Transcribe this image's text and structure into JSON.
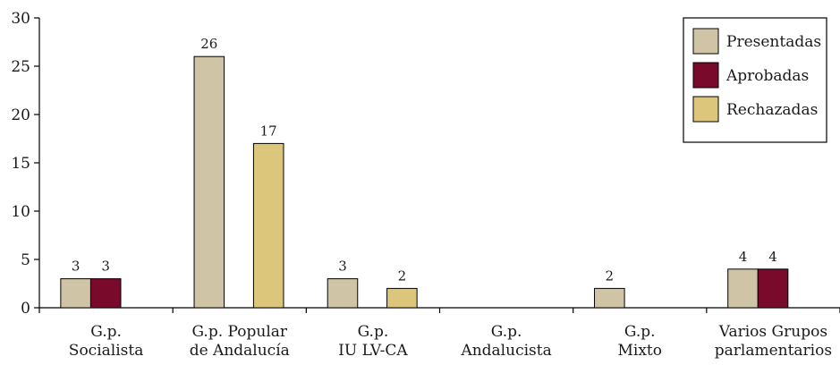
{
  "chart_data": {
    "type": "bar",
    "categories": [
      [
        "G.p.",
        "Socialista"
      ],
      [
        "G.p. Popular",
        "de Andalucía"
      ],
      [
        "G.p.",
        "IU LV-CA"
      ],
      [
        "G.p.",
        "Andalucista"
      ],
      [
        "G.p.",
        "Mixto"
      ],
      [
        "Varios Grupos",
        "parlamentarios"
      ]
    ],
    "series": [
      {
        "name": "Presentadas",
        "color": "#cfc5a6",
        "values": [
          3,
          26,
          3,
          null,
          2,
          4
        ]
      },
      {
        "name": "Aprobadas",
        "color": "#7a0a2c",
        "values": [
          3,
          null,
          null,
          null,
          null,
          4
        ]
      },
      {
        "name": "Rechazadas",
        "color": "#dcc67c",
        "values": [
          null,
          17,
          2,
          null,
          null,
          null
        ]
      }
    ],
    "yticks": [
      "0",
      "5",
      "10",
      "15",
      "20",
      "25",
      "30"
    ],
    "ylim": [
      0,
      30
    ],
    "legend_position": "top-right",
    "grid": false
  }
}
